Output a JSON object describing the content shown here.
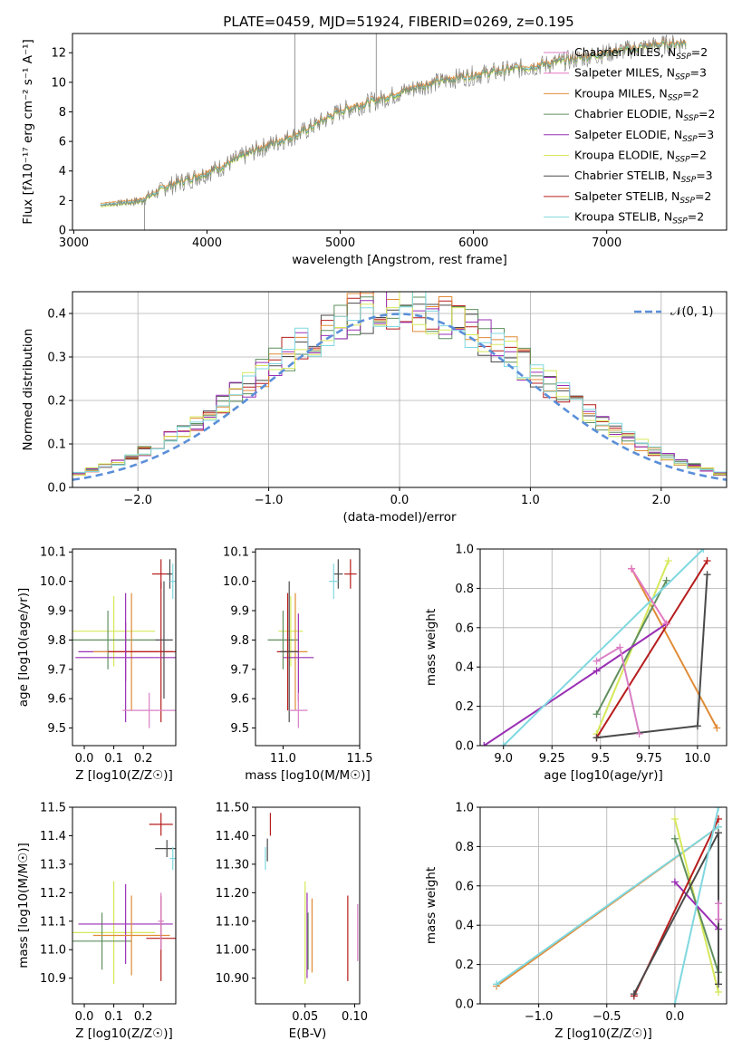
{
  "figure_title": "PLATE=0459, MJD=51924, FIBERID=0269, z=0.195",
  "colors": {
    "data": "#808080",
    "series": [
      "#d97fc5",
      "#e377c2",
      "#e08b36",
      "#5f8f5f",
      "#9a2fb5",
      "#d6e85a",
      "#4a4a4a",
      "#b71c1c",
      "#7fd8e0"
    ],
    "normal": "#5b8fd9"
  },
  "chart_data": [
    {
      "id": "spectrum",
      "type": "line",
      "xlabel": "wavelength [Angstrom, rest frame]",
      "ylabel": "Flux [fλ10⁻¹⁷ erg cm⁻² s⁻¹ A⁻¹]",
      "xlim": [
        2990,
        7900
      ],
      "ylim": [
        0,
        13.3
      ],
      "xticks": [
        3000,
        4000,
        5000,
        6000,
        7000
      ],
      "yticks": [
        0,
        2,
        4,
        6,
        8,
        10,
        12
      ],
      "grid": false,
      "legend": "top-right",
      "legend_entries": [
        "Chabrier MILES, N_SSP=2",
        "Salpeter MILES, N_SSP=3",
        "Kroupa MILES, N_SSP=2",
        "Chabrier ELODIE, N_SSP=2",
        "Salpeter ELODIE, N_SSP=3",
        "Kroupa ELODIE, N_SSP=2",
        "Chabrier STELIB, N_SSP=3",
        "Salpeter STELIB, N_SSP=2",
        "Kroupa STELIB, N_SSP=2"
      ],
      "continuum": {
        "x": [
          3200,
          3500,
          3700,
          3900,
          4100,
          4400,
          4700,
          5000,
          5300,
          5600,
          5900,
          6200,
          6500,
          6800,
          7100,
          7400,
          7600
        ],
        "y": [
          1.7,
          2.0,
          3.0,
          3.6,
          4.3,
          5.6,
          6.6,
          8.1,
          8.9,
          9.8,
          10.4,
          10.8,
          11.2,
          11.7,
          12.2,
          12.6,
          12.7
        ]
      },
      "spikes": [
        {
          "x": 4660,
          "y": 13.3
        },
        {
          "x": 5270,
          "y": 13.3
        },
        {
          "x": 3530,
          "y": 0
        }
      ]
    },
    {
      "id": "residuals",
      "type": "histogram",
      "xlabel": "(data-model)/error",
      "ylabel": "Normed distribution",
      "xlim": [
        -2.5,
        2.5
      ],
      "ylim": [
        0,
        0.45
      ],
      "xticks": [
        -2,
        -1,
        0,
        1,
        2
      ],
      "yticks": [
        0.0,
        0.1,
        0.2,
        0.3,
        0.4
      ],
      "grid": true,
      "legend": "top-right",
      "legend_label": "𝒩(0, 1)",
      "bins": 50
    },
    {
      "id": "z-age",
      "type": "scatter",
      "xlabel": "Z [log10(Z/Z☉)]",
      "ylabel": "age [log10(age/yr)]",
      "xlim": [
        -0.04,
        0.31
      ],
      "ylim": [
        9.44,
        10.11
      ],
      "xticks": [
        0.0,
        0.1,
        0.2
      ],
      "yticks": [
        9.5,
        9.6,
        9.7,
        9.8,
        9.9,
        10.0,
        10.1
      ],
      "points": [
        {
          "x": 0.26,
          "y": 10.025,
          "xe": 0.03,
          "ye": 0.05,
          "c": 7
        },
        {
          "x": 0.29,
          "y": 10.025,
          "xe": 0.01,
          "ye": 0.05,
          "c": 6
        },
        {
          "x": 0.3,
          "y": 10.0,
          "xe": 0.01,
          "ye": 0.06,
          "c": 8
        },
        {
          "x": 0.1,
          "y": 9.83,
          "xe": 0.14,
          "ye": 0.12,
          "c": 5
        },
        {
          "x": 0.08,
          "y": 9.8,
          "xe": 0.16,
          "ye": 0.1,
          "c": 3
        },
        {
          "x": 0.14,
          "y": 9.76,
          "xe": 0.16,
          "ye": 0.1,
          "c": 4
        },
        {
          "x": 0.16,
          "y": 9.76,
          "xe": 0.13,
          "ye": 0.2,
          "c": 2
        },
        {
          "x": 0.26,
          "y": 9.76,
          "xe": 0.18,
          "ye": 0.24,
          "c": 7
        },
        {
          "x": 0.14,
          "y": 9.74,
          "xe": 0.17,
          "ye": 0.22,
          "c": 4
        },
        {
          "x": 0.27,
          "y": 9.8,
          "xe": 0.03,
          "ye": 0.2,
          "c": 6
        },
        {
          "x": 0.22,
          "y": 9.56,
          "xe": 0.09,
          "ye": 0.06,
          "c": 0
        }
      ]
    },
    {
      "id": "mass-age",
      "type": "scatter",
      "xlabel": "mass [log10(M/M☉)]",
      "ylabel": "",
      "xlim": [
        10.82,
        11.5
      ],
      "ylim": [
        9.44,
        10.11
      ],
      "xticks": [
        11.0,
        11.5
      ],
      "yticks": [
        9.5,
        9.6,
        9.7,
        9.8,
        9.9,
        10.0,
        10.1
      ],
      "points": [
        {
          "x": 11.44,
          "y": 10.025,
          "xe": 0.04,
          "ye": 0.05,
          "c": 7
        },
        {
          "x": 11.36,
          "y": 10.025,
          "xe": 0.03,
          "ye": 0.05,
          "c": 6
        },
        {
          "x": 11.33,
          "y": 10.0,
          "xe": 0.03,
          "ye": 0.06,
          "c": 8
        },
        {
          "x": 11.05,
          "y": 9.83,
          "xe": 0.08,
          "ye": 0.12,
          "c": 5
        },
        {
          "x": 11.0,
          "y": 9.8,
          "xe": 0.1,
          "ye": 0.1,
          "c": 3
        },
        {
          "x": 11.08,
          "y": 9.76,
          "xe": 0.08,
          "ye": 0.2,
          "c": 2
        },
        {
          "x": 11.1,
          "y": 9.74,
          "xe": 0.1,
          "ye": 0.15,
          "c": 4
        },
        {
          "x": 11.03,
          "y": 9.76,
          "xe": 0.07,
          "ye": 0.2,
          "c": 7
        },
        {
          "x": 11.04,
          "y": 9.76,
          "xe": 0.06,
          "ye": 0.24,
          "c": 6
        },
        {
          "x": 11.1,
          "y": 9.56,
          "xe": 0.06,
          "ye": 0.06,
          "c": 0
        }
      ]
    },
    {
      "id": "age-weight",
      "type": "line",
      "xlabel": "age [log10(age/yr)]",
      "ylabel": "mass weight",
      "xlim": [
        8.88,
        10.15
      ],
      "ylim": [
        0,
        1.0
      ],
      "xticks": [
        9.0,
        9.25,
        9.5,
        9.75,
        10.0
      ],
      "yticks": [
        0.0,
        0.2,
        0.4,
        0.6,
        0.8,
        1.0
      ],
      "grid": true,
      "series": [
        {
          "c": 2,
          "x": [
            9.66,
            10.1
          ],
          "y": [
            0.9,
            0.09
          ]
        },
        {
          "c": 5,
          "x": [
            9.48,
            9.85
          ],
          "y": [
            0.06,
            0.94
          ]
        },
        {
          "c": 3,
          "x": [
            9.48,
            9.84
          ],
          "y": [
            0.16,
            0.84
          ]
        },
        {
          "c": 4,
          "x": [
            8.9,
            9.48,
            9.84
          ],
          "y": [
            0.0,
            0.38,
            0.62
          ]
        },
        {
          "c": 8,
          "x": [
            9.0,
            10.03
          ],
          "y": [
            0.0,
            1.0
          ]
        },
        {
          "c": 7,
          "x": [
            9.48,
            10.05
          ],
          "y": [
            0.04,
            0.94
          ]
        },
        {
          "c": 6,
          "x": [
            9.48,
            10.0,
            10.05
          ],
          "y": [
            0.04,
            0.1,
            0.87
          ]
        },
        {
          "c": 0,
          "x": [
            9.48,
            9.6,
            9.7
          ],
          "y": [
            0.43,
            0.5,
            0.06
          ]
        },
        {
          "c": 1,
          "x": [
            9.66,
            9.84
          ],
          "y": [
            0.9,
            0.62
          ]
        }
      ]
    },
    {
      "id": "z-mass",
      "type": "scatter",
      "xlabel": "Z [log10(Z/Z☉)]",
      "ylabel": "mass [log10(M/M☉)]",
      "xlim": [
        -0.04,
        0.31
      ],
      "ylim": [
        10.81,
        11.5
      ],
      "xticks": [
        0.0,
        0.1,
        0.2
      ],
      "yticks": [
        10.9,
        11.0,
        11.1,
        11.2,
        11.3,
        11.4,
        11.5
      ],
      "points": [
        {
          "x": 0.26,
          "y": 11.44,
          "xe": 0.04,
          "ye": 0.04,
          "c": 7
        },
        {
          "x": 0.28,
          "y": 11.355,
          "xe": 0.04,
          "ye": 0.03,
          "c": 6
        },
        {
          "x": 0.3,
          "y": 11.32,
          "xe": 0.01,
          "ye": 0.04,
          "c": 8
        },
        {
          "x": 0.1,
          "y": 11.06,
          "xe": 0.14,
          "ye": 0.18,
          "c": 5
        },
        {
          "x": 0.06,
          "y": 11.03,
          "xe": 0.1,
          "ye": 0.1,
          "c": 3
        },
        {
          "x": 0.14,
          "y": 11.09,
          "xe": 0.16,
          "ye": 0.14,
          "c": 4
        },
        {
          "x": 0.16,
          "y": 11.05,
          "xe": 0.13,
          "ye": 0.14,
          "c": 2
        },
        {
          "x": 0.26,
          "y": 11.04,
          "xe": 0.05,
          "ye": 0.15,
          "c": 7
        },
        {
          "x": 0.26,
          "y": 11.1,
          "xe": 0.01,
          "ye": 0.1,
          "c": 0
        }
      ]
    },
    {
      "id": "ebv-mass",
      "type": "scatter",
      "xlabel": "E(B-V)",
      "ylabel": "",
      "xlim": [
        0.0,
        0.105
      ],
      "ylim": [
        10.81,
        11.5
      ],
      "xticks": [
        0.05,
        0.1
      ],
      "yticks": [
        10.9,
        11.0,
        11.1,
        11.2,
        11.3,
        11.4,
        11.5
      ],
      "points": [
        {
          "x": 0.015,
          "y": 11.44,
          "ye": 0.04,
          "c": 7
        },
        {
          "x": 0.012,
          "y": 11.35,
          "ye": 0.04,
          "c": 6
        },
        {
          "x": 0.01,
          "y": 11.32,
          "ye": 0.04,
          "c": 8
        },
        {
          "x": 0.05,
          "y": 11.06,
          "ye": 0.18,
          "c": 5
        },
        {
          "x": 0.052,
          "y": 11.05,
          "ye": 0.15,
          "c": 4
        },
        {
          "x": 0.053,
          "y": 11.03,
          "ye": 0.1,
          "c": 3
        },
        {
          "x": 0.057,
          "y": 11.05,
          "ye": 0.13,
          "c": 2
        },
        {
          "x": 0.093,
          "y": 11.04,
          "ye": 0.15,
          "c": 7
        },
        {
          "x": 0.103,
          "y": 11.06,
          "ye": 0.1,
          "c": 0
        }
      ]
    },
    {
      "id": "z-weight",
      "type": "line",
      "xlabel": "Z [log10(Z/Z☉)]",
      "ylabel": "mass weight",
      "xlim": [
        -1.43,
        0.38
      ],
      "ylim": [
        0,
        1.0
      ],
      "xticks": [
        -1.0,
        -0.5,
        0.0
      ],
      "yticks": [
        0.0,
        0.2,
        0.4,
        0.6,
        0.8,
        1.0
      ],
      "grid": true,
      "series": [
        {
          "c": 2,
          "x": [
            -1.31,
            0.32
          ],
          "y": [
            0.09,
            0.9
          ]
        },
        {
          "c": 8,
          "x": [
            -1.31,
            0.32
          ],
          "y": [
            0.1,
            0.9
          ]
        },
        {
          "c": 5,
          "x": [
            0.0,
            0.32
          ],
          "y": [
            0.94,
            0.06
          ]
        },
        {
          "c": 3,
          "x": [
            0.0,
            0.32
          ],
          "y": [
            0.84,
            0.16
          ]
        },
        {
          "c": 4,
          "x": [
            0.0,
            0.32
          ],
          "y": [
            0.62,
            0.38
          ]
        },
        {
          "c": 7,
          "x": [
            -0.3,
            0.32
          ],
          "y": [
            0.04,
            0.94
          ]
        },
        {
          "c": 6,
          "x": [
            -0.3,
            0.32,
            0.32
          ],
          "y": [
            0.05,
            0.87,
            0.1
          ]
        },
        {
          "c": 8,
          "x": [
            0.0,
            0.32
          ],
          "y": [
            0.0,
            1.0
          ]
        },
        {
          "c": 0,
          "x": [
            0.32,
            0.32
          ],
          "y": [
            0.43,
            0.51
          ]
        }
      ]
    }
  ]
}
